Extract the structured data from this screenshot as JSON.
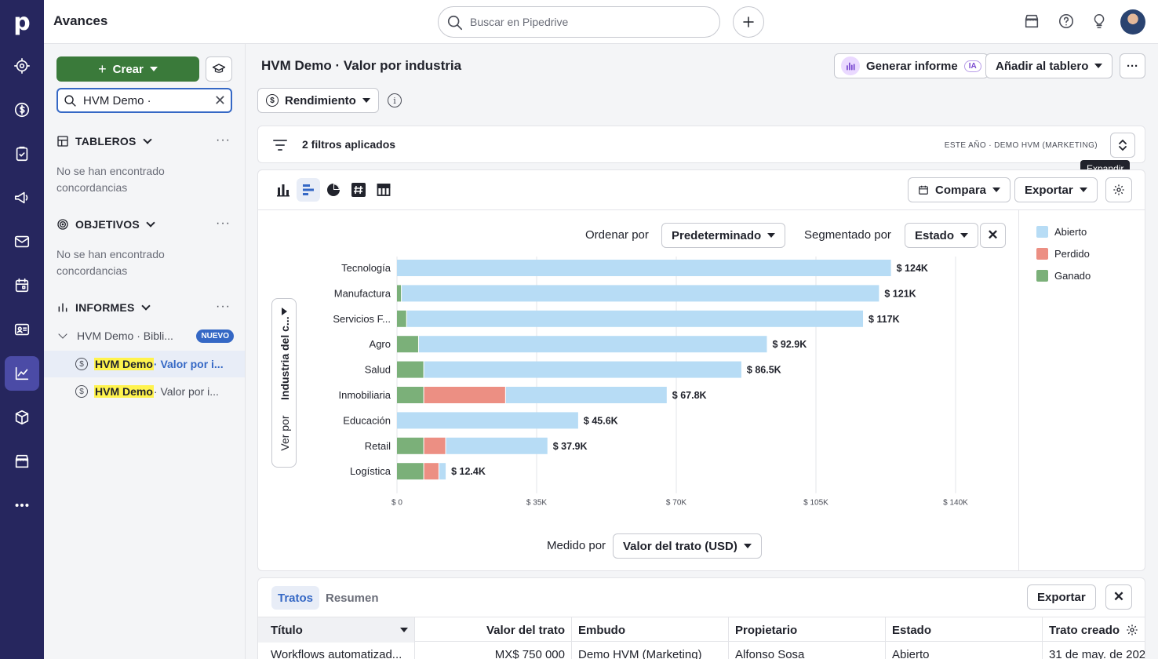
{
  "app": {
    "title": "Avances",
    "logo": "p"
  },
  "rail": [
    "activity-icon",
    "deals-icon",
    "tasks-icon",
    "campaigns-icon",
    "mail-icon",
    "calendar-icon",
    "contacts-icon",
    "insights-icon",
    "products-icon",
    "marketplace-icon",
    "more-icon"
  ],
  "search": {
    "placeholder": "Buscar en Pipedrive"
  },
  "sidebar": {
    "crear_label": "Crear",
    "search_value": "HVM Demo ·",
    "sections": {
      "tableros": "TABLEROS",
      "objetivos": "OBJETIVOS",
      "informes": "INFORMES"
    },
    "empty_text": "No se han encontrado concordancias",
    "folder": {
      "label": "HVM Demo · Bibli...",
      "badge": "NUEVO"
    },
    "reports": [
      {
        "highlight": "HVM Demo",
        "rest": " · Valor por i..."
      },
      {
        "highlight": "HVM Demo",
        "rest": " · Valor por i..."
      }
    ]
  },
  "report": {
    "title": "HVM Demo · Valor por industria",
    "generate_label": "Generar informe",
    "ia_badge": "IA",
    "add_board_label": "Añadir al tablero",
    "metric_label": "Rendimiento"
  },
  "filters": {
    "text": "2 filtros aplicados",
    "period": "ESTE AÑO",
    "pipeline": "DEMO HVM (MARKETING)",
    "tooltip": "Expandir"
  },
  "chart_controls": {
    "compare_label": "Compara",
    "export_label": "Exportar",
    "order_label": "Ordenar por",
    "order_value": "Predeterminado",
    "segment_label": "Segmentado por",
    "segment_value": "Estado",
    "view_by_prefix": "Ver por",
    "view_by_value": "Industria del c...",
    "measure_label": "Medido por",
    "measure_value": "Valor del trato (USD)"
  },
  "chart_data": {
    "type": "bar",
    "orientation": "horizontal",
    "stacked": true,
    "categories": [
      "Tecnología",
      "Manufactura",
      "Servicios F...",
      "Agro",
      "Salud",
      "Inmobiliaria",
      "Educación",
      "Retail",
      "Logística"
    ],
    "series": [
      {
        "name": "Ganado",
        "color": "#7bb079",
        "values": [
          0,
          1200,
          2500,
          5500,
          6800,
          6800,
          0,
          6800,
          6800
        ]
      },
      {
        "name": "Perdido",
        "color": "#ec8f83",
        "values": [
          0,
          0,
          0,
          0,
          0,
          20500,
          0,
          5500,
          3800
        ]
      },
      {
        "name": "Abierto",
        "color": "#b7dcf5",
        "values": [
          124000,
          119800,
          114500,
          87400,
          79700,
          40500,
          45600,
          25600,
          1800
        ]
      }
    ],
    "value_labels": [
      "$ 124K",
      "$ 121K",
      "$ 117K",
      "$ 92.9K",
      "$ 86.5K",
      "$ 67.8K",
      "$ 45.6K",
      "$ 37.9K",
      "$ 12.4K"
    ],
    "x_ticks": [
      0,
      35000,
      70000,
      105000,
      140000
    ],
    "x_tick_labels": [
      "$ 0",
      "$ 35K",
      "$ 70K",
      "$ 105K",
      "$ 140K"
    ],
    "xlim": [
      0,
      140000
    ],
    "legend": [
      "Abierto",
      "Perdido",
      "Ganado"
    ],
    "legend_position": "right",
    "grid": true
  },
  "table": {
    "tabs": [
      "Tratos",
      "Resumen"
    ],
    "export_label": "Exportar",
    "columns": [
      "Título",
      "Valor del trato",
      "Embudo",
      "Propietario",
      "Estado",
      "Trato creado"
    ],
    "rows": [
      [
        "Workflows automatizad...",
        "MX$ 750 000",
        "Demo HVM (Marketing)",
        "Alfonso Sosa",
        "Abierto",
        "31 de may. de 202"
      ]
    ]
  }
}
